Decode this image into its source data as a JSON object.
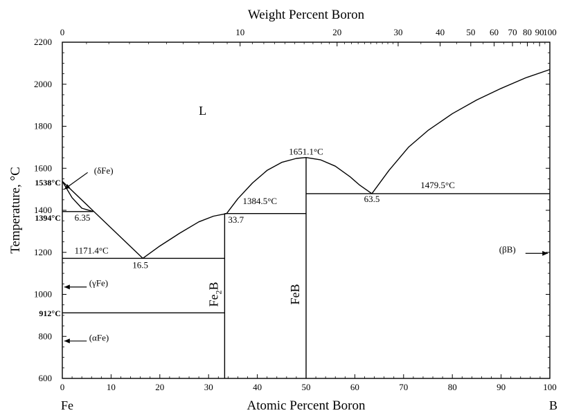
{
  "chart_data": {
    "type": "line",
    "title": "",
    "xlabel": "Atomic Percent Boron",
    "x2label": "Weight Percent Boron",
    "ylabel": "Temperature, °C",
    "xlim": [
      0,
      100
    ],
    "ylim": [
      600,
      2200
    ],
    "grid": false,
    "x_ticks": [
      0,
      10,
      20,
      30,
      40,
      50,
      60,
      70,
      80,
      90,
      100
    ],
    "y_ticks": [
      600,
      800,
      1000,
      1200,
      1400,
      1600,
      1800,
      2000,
      2200
    ],
    "top_ticks": [
      {
        "label": "0",
        "wt": 0
      },
      {
        "label": "10",
        "wt": 10
      },
      {
        "label": "20",
        "wt": 20
      },
      {
        "label": "30",
        "wt": 30
      },
      {
        "label": "40",
        "wt": 40
      },
      {
        "label": "50",
        "wt": 50
      },
      {
        "label": "60",
        "wt": 60
      },
      {
        "label": "70",
        "wt": 70
      },
      {
        "label": "80",
        "wt": 80
      },
      {
        "label": "90",
        "wt": 90
      },
      {
        "label": "100",
        "wt": 100
      }
    ],
    "corner_labels": {
      "left": "Fe",
      "right": "B"
    },
    "series": [
      {
        "points": [
          [
            0,
            1538
          ],
          [
            16.5,
            1171.4
          ]
        ]
      },
      {
        "points": [
          [
            0,
            1538
          ],
          [
            2,
            1460
          ],
          [
            4,
            1410
          ],
          [
            6.35,
            1394
          ]
        ]
      },
      {
        "points": [
          [
            16.5,
            1171.4
          ],
          [
            20,
            1230
          ],
          [
            24,
            1290
          ],
          [
            28,
            1345
          ],
          [
            31,
            1372
          ],
          [
            33.7,
            1384.5
          ]
        ]
      },
      {
        "points": [
          [
            33.7,
            1384.5
          ],
          [
            36,
            1455
          ],
          [
            39,
            1530
          ],
          [
            42,
            1590
          ],
          [
            45,
            1628
          ],
          [
            48,
            1647
          ],
          [
            50,
            1651.1
          ]
        ]
      },
      {
        "points": [
          [
            50,
            1651.1
          ],
          [
            53,
            1640
          ],
          [
            56,
            1610
          ],
          [
            59,
            1560
          ],
          [
            61,
            1520
          ],
          [
            63.5,
            1479.5
          ]
        ]
      },
      {
        "points": [
          [
            63.5,
            1479.5
          ],
          [
            67,
            1590
          ],
          [
            71,
            1700
          ],
          [
            75,
            1780
          ],
          [
            80,
            1860
          ],
          [
            85,
            1925
          ],
          [
            90,
            1980
          ],
          [
            95,
            2030
          ],
          [
            100,
            2070
          ]
        ]
      },
      {
        "points": [
          [
            0,
            1171.4
          ],
          [
            33.3,
            1171.4
          ]
        ]
      },
      {
        "points": [
          [
            0,
            912
          ],
          [
            33.3,
            912
          ]
        ]
      },
      {
        "points": [
          [
            0,
            1394
          ],
          [
            6.35,
            1394
          ]
        ]
      },
      {
        "points": [
          [
            33.3,
            1384.5
          ],
          [
            50,
            1384.5
          ]
        ]
      },
      {
        "points": [
          [
            50,
            1479.5
          ],
          [
            100,
            1479.5
          ]
        ]
      },
      {
        "points": [
          [
            33.3,
            600
          ],
          [
            33.3,
            1384.5
          ]
        ]
      },
      {
        "points": [
          [
            50,
            600
          ],
          [
            50,
            1651.1
          ]
        ]
      }
    ],
    "annotations": [
      {
        "text": "L",
        "x": 28,
        "y": 1855,
        "style": "big"
      },
      {
        "text": "1651.1°C",
        "x": 50,
        "y": 1665,
        "style": "normal",
        "anchor": "middle"
      },
      {
        "text": "1384.5°C",
        "x": 37,
        "y": 1430,
        "style": "normal"
      },
      {
        "text": "1479.5°C",
        "x": 77,
        "y": 1505,
        "style": "normal",
        "anchor": "middle"
      },
      {
        "text": "63.5",
        "x": 63.5,
        "y": 1440,
        "style": "normal",
        "anchor": "middle"
      },
      {
        "text": "33.7",
        "x": 34,
        "y": 1340,
        "style": "normal"
      },
      {
        "text": "6.35",
        "x": 2.5,
        "y": 1350,
        "style": "normal"
      },
      {
        "text": "1171.4°C",
        "x": 2.5,
        "y": 1195,
        "style": "normal"
      },
      {
        "text": "16.5",
        "x": 16,
        "y": 1125,
        "style": "normal",
        "anchor": "middle"
      },
      {
        "text": "1538°C",
        "x": -0.3,
        "y": 1518,
        "style": "bold",
        "anchor": "end"
      },
      {
        "text": "1394°C",
        "x": -0.3,
        "y": 1350,
        "style": "bold",
        "anchor": "end"
      },
      {
        "text": "912°C",
        "x": -0.3,
        "y": 897,
        "style": "bold",
        "anchor": "end"
      },
      {
        "text": "(δFe)",
        "x": 6.5,
        "y": 1575,
        "style": "normal"
      },
      {
        "text": "(γFe)",
        "x": 5.5,
        "y": 1040,
        "style": "normal"
      },
      {
        "text": "(αFe)",
        "x": 5.5,
        "y": 780,
        "style": "normal"
      },
      {
        "text": "(βB)",
        "x": 93,
        "y": 1200,
        "style": "normal",
        "anchor": "end"
      }
    ],
    "arrows": [
      {
        "from": [
          5.2,
          1580
        ],
        "to": [
          0.4,
          1500
        ]
      },
      {
        "from": [
          5,
          1035
        ],
        "to": [
          0.4,
          1035
        ]
      },
      {
        "from": [
          5,
          778
        ],
        "to": [
          0.4,
          778
        ]
      },
      {
        "from": [
          95,
          1195
        ],
        "to": [
          99.6,
          1195
        ]
      }
    ],
    "phase_labels": [
      {
        "text": "Fe",
        "sub": "2",
        "text2": "B",
        "x": 31.9,
        "y": 1000
      },
      {
        "text": "FeB",
        "sub": "",
        "text2": "",
        "x": 48.6,
        "y": 1000
      }
    ]
  }
}
